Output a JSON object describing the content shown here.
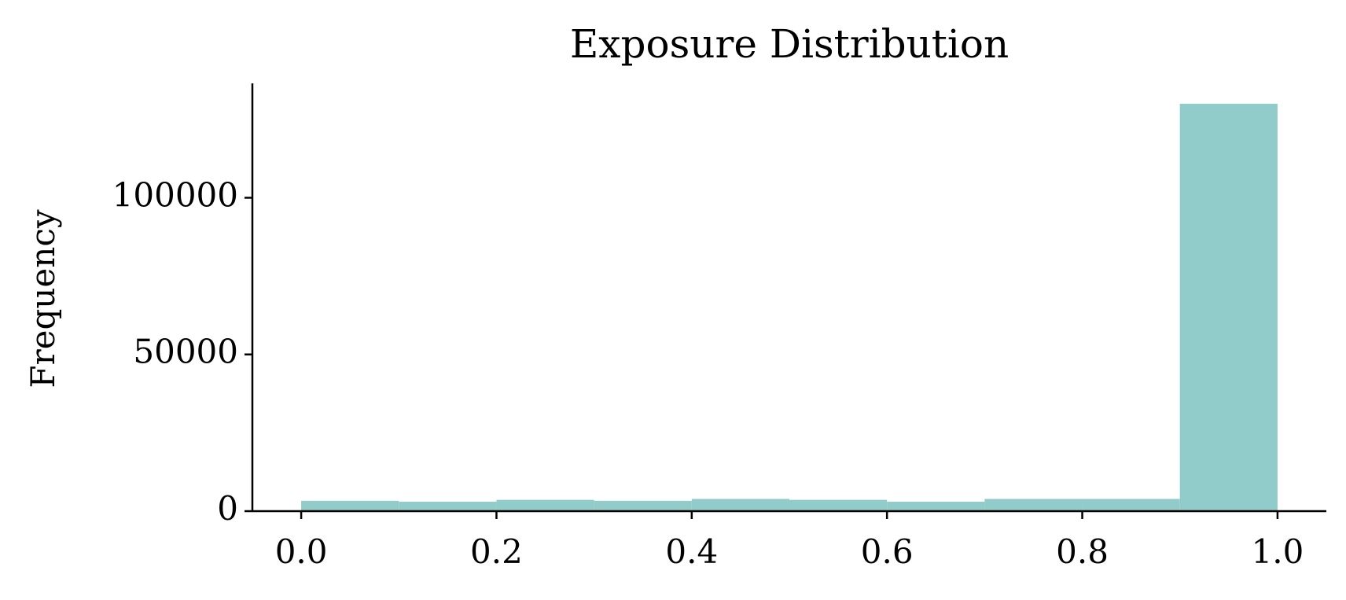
{
  "chart_data": {
    "type": "histogram",
    "title": "Exposure Distribution",
    "y_label": "Frequency",
    "bins": [
      0.0,
      0.1,
      0.2,
      0.3,
      0.4,
      0.5,
      0.6,
      0.7,
      0.8,
      0.9,
      1.0
    ],
    "values": [
      3300,
      3000,
      3600,
      3300,
      3900,
      3600,
      3000,
      3900,
      3900,
      130000
    ],
    "color": "#91cbca",
    "xlim": [
      -0.05,
      1.05
    ],
    "ylim": [
      0,
      136500
    ],
    "xticks": [
      {
        "value": 0,
        "label": "0.0"
      },
      0.2,
      0.4,
      0.6,
      0.8,
      {
        "value": 1,
        "label": "1.0"
      }
    ],
    "yticks": [
      0,
      50000,
      100000
    ],
    "grid": false
  }
}
